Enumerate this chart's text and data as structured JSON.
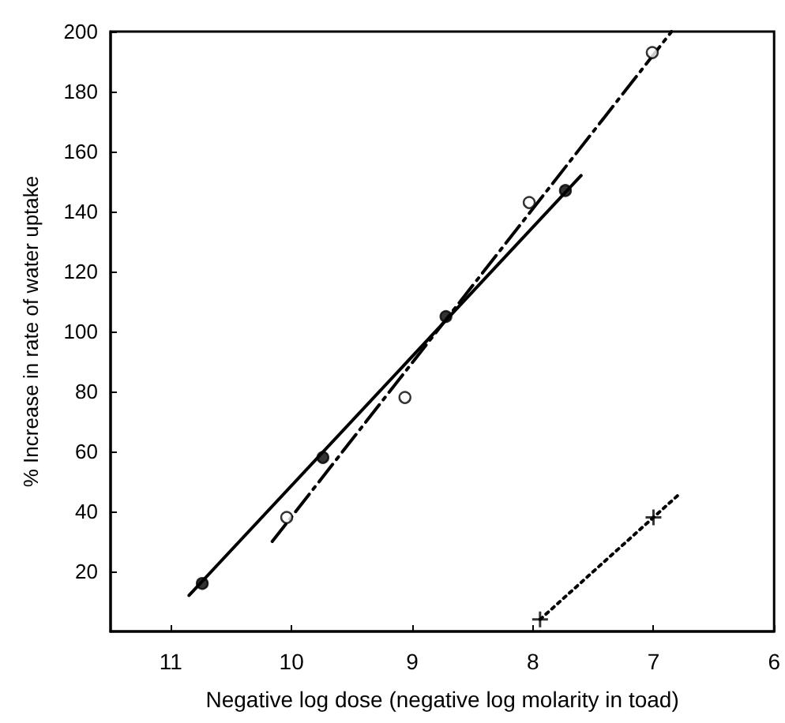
{
  "chart_data": {
    "type": "scatter",
    "xlabel": "Negative log dose (negative log molarity in toad)",
    "ylabel": "% Increase in rate of water uptake",
    "xlim": [
      11.5,
      6
    ],
    "xticks": [
      11,
      10,
      9,
      8,
      7,
      6
    ],
    "ylim": [
      0,
      200
    ],
    "yticks": [
      20,
      40,
      60,
      80,
      100,
      120,
      140,
      160,
      180,
      200
    ],
    "grid": false,
    "series": [
      {
        "type": "line",
        "color": "#000000",
        "line_style": "solid",
        "marker": "none",
        "x": [
          10.85,
          7.6
        ],
        "values": [
          12,
          152
        ]
      },
      {
        "type": "line",
        "color": "#000000",
        "line_style": "dashed",
        "marker": "none",
        "x": [
          10.16,
          6.85
        ],
        "values": [
          30,
          200
        ]
      },
      {
        "type": "line",
        "color": "#000000",
        "line_style": "dotted",
        "marker": "none",
        "x": [
          7.94,
          6.78
        ],
        "values": [
          4,
          46
        ]
      },
      {
        "color": "#000000",
        "marker": "circle",
        "x": [
          10.74,
          9.74,
          8.72,
          7.73
        ],
        "values": [
          16,
          58,
          105,
          147
        ]
      },
      {
        "color": "#ffffff",
        "marker": "circle",
        "x": [
          10.04,
          9.06,
          8.03,
          7.01
        ],
        "values": [
          38,
          78,
          143,
          193
        ]
      },
      {
        "color": "#000000",
        "marker": "cross",
        "x": [
          7.94,
          7.0
        ],
        "values": [
          4,
          38
        ]
      }
    ]
  }
}
